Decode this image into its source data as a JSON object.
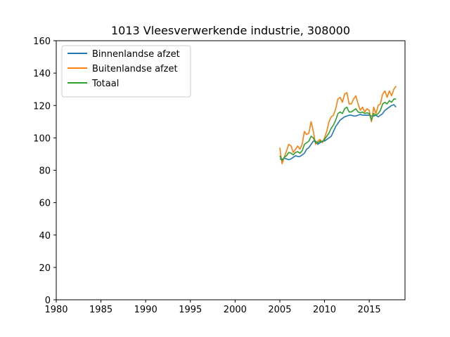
{
  "chart_data": {
    "type": "line",
    "title": "1013 Vleesverwerkende industrie, 308000",
    "xlabel": "",
    "ylabel": "",
    "xlim": [
      1980,
      2019
    ],
    "ylim": [
      0,
      160
    ],
    "xticks": [
      1980,
      1985,
      1990,
      1995,
      2000,
      2005,
      2010,
      2015
    ],
    "yticks": [
      0,
      20,
      40,
      60,
      80,
      100,
      120,
      140,
      160
    ],
    "grid": false,
    "legend": "top-left",
    "series": [
      {
        "name": "Binnenlandse afzet",
        "color": "#1f77b4",
        "x": [
          2005.0,
          2005.25,
          2005.5,
          2005.75,
          2006.0,
          2006.25,
          2006.5,
          2006.75,
          2007.0,
          2007.25,
          2007.5,
          2007.75,
          2008.0,
          2008.25,
          2008.5,
          2008.75,
          2009.0,
          2009.25,
          2009.5,
          2009.75,
          2010.0,
          2010.25,
          2010.5,
          2010.75,
          2011.0,
          2011.25,
          2011.5,
          2011.75,
          2012.0,
          2012.25,
          2012.5,
          2012.75,
          2013.0,
          2013.25,
          2013.5,
          2013.75,
          2014.0,
          2014.25,
          2014.5,
          2014.75,
          2015.0,
          2015.25,
          2015.5,
          2015.75,
          2016.0,
          2016.25,
          2016.5,
          2016.75,
          2017.0,
          2017.25,
          2017.5,
          2017.75,
          2018.0
        ],
        "values": [
          87,
          86.5,
          87.5,
          87,
          86.5,
          87,
          88,
          89,
          88.5,
          88.5,
          89.5,
          90.5,
          93,
          94,
          96,
          98,
          98,
          96,
          97,
          98,
          98,
          99,
          100,
          101,
          104,
          107,
          109,
          111,
          112,
          113,
          113.5,
          114,
          114,
          113.5,
          113.5,
          114,
          114.5,
          114,
          114,
          114,
          114,
          113.5,
          113.5,
          114,
          113,
          114,
          115,
          117,
          118,
          119,
          120,
          120.5,
          119
        ]
      },
      {
        "name": "Buitenlandse afzet",
        "color": "#ff7f0e",
        "x": [
          2005.0,
          2005.25,
          2005.5,
          2005.75,
          2006.0,
          2006.25,
          2006.5,
          2006.75,
          2007.0,
          2007.25,
          2007.5,
          2007.75,
          2008.0,
          2008.25,
          2008.5,
          2008.75,
          2009.0,
          2009.25,
          2009.5,
          2009.75,
          2010.0,
          2010.25,
          2010.5,
          2010.75,
          2011.0,
          2011.25,
          2011.5,
          2011.75,
          2012.0,
          2012.25,
          2012.5,
          2012.75,
          2013.0,
          2013.25,
          2013.5,
          2013.75,
          2014.0,
          2014.25,
          2014.5,
          2014.75,
          2015.0,
          2015.25,
          2015.5,
          2015.75,
          2016.0,
          2016.25,
          2016.5,
          2016.75,
          2017.0,
          2017.25,
          2017.5,
          2017.75,
          2018.0
        ],
        "values": [
          94,
          84,
          88,
          92,
          96,
          95,
          91,
          93,
          95,
          93,
          96,
          104,
          102,
          103,
          110,
          104,
          96,
          98,
          99,
          97,
          100,
          104,
          110,
          113,
          114,
          118,
          124,
          125,
          122,
          127,
          128,
          121,
          121,
          124,
          126,
          121,
          117,
          119,
          116,
          118,
          117,
          110,
          119,
          115,
          120,
          121,
          127,
          129,
          125,
          129,
          126,
          130,
          132
        ]
      },
      {
        "name": "Totaal",
        "color": "#2ca02c",
        "x": [
          2005.0,
          2005.25,
          2005.5,
          2005.75,
          2006.0,
          2006.25,
          2006.5,
          2006.75,
          2007.0,
          2007.25,
          2007.5,
          2007.75,
          2008.0,
          2008.25,
          2008.5,
          2008.75,
          2009.0,
          2009.25,
          2009.5,
          2009.75,
          2010.0,
          2010.25,
          2010.5,
          2010.75,
          2011.0,
          2011.25,
          2011.5,
          2011.75,
          2012.0,
          2012.25,
          2012.5,
          2012.75,
          2013.0,
          2013.25,
          2013.5,
          2013.75,
          2014.0,
          2014.25,
          2014.5,
          2014.75,
          2015.0,
          2015.25,
          2015.5,
          2015.75,
          2016.0,
          2016.25,
          2016.5,
          2016.75,
          2017.0,
          2017.25,
          2017.5,
          2017.75,
          2018.0
        ],
        "values": [
          89,
          86,
          88,
          89,
          91,
          90.5,
          89.5,
          91,
          91.5,
          90.5,
          92,
          96,
          97,
          98,
          101,
          100,
          97,
          97,
          98,
          97.5,
          99,
          101,
          103,
          106,
          108,
          111,
          115,
          116,
          115,
          118,
          119,
          116,
          116,
          117,
          118,
          116,
          115.5,
          116,
          115,
          115.5,
          115,
          111,
          115,
          114,
          115,
          117,
          121,
          122,
          121,
          123,
          122,
          124,
          124
        ]
      }
    ]
  }
}
